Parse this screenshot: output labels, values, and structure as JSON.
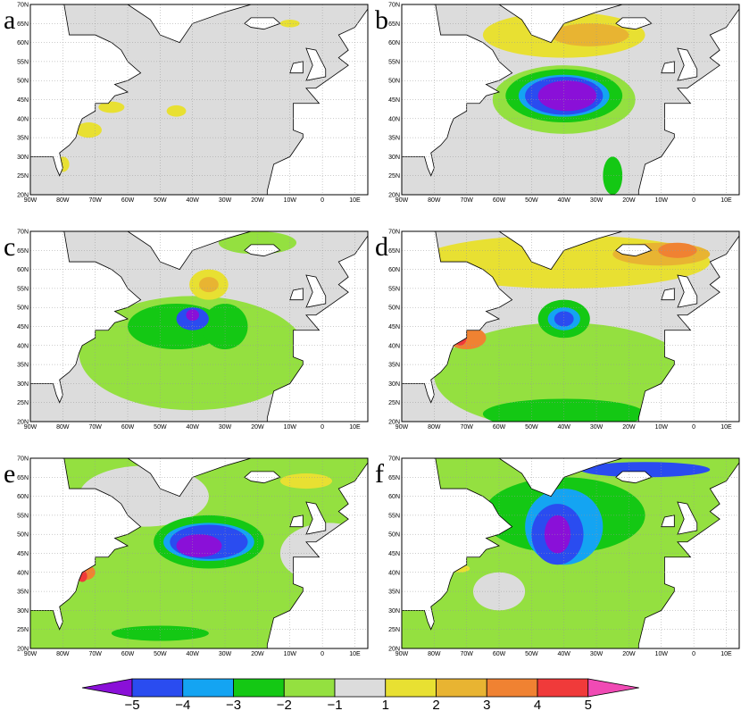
{
  "panels": [
    "a",
    "b",
    "c",
    "d",
    "e",
    "f"
  ],
  "x_ticks": [
    "90W",
    "80W",
    "70W",
    "60W",
    "50W",
    "40W",
    "30W",
    "20W",
    "10W",
    "0",
    "10E"
  ],
  "y_ticks": [
    "20N",
    "25N",
    "30N",
    "35N",
    "40N",
    "45N",
    "50N",
    "55N",
    "60N",
    "65N",
    "70N"
  ],
  "colorbar": {
    "labels": [
      "−5",
      "−4",
      "−3",
      "−2",
      "−1",
      "1",
      "2",
      "3",
      "4",
      "5"
    ],
    "colors": [
      "#8a10d8",
      "#2a4cf0",
      "#14a4f2",
      "#14c814",
      "#94e040",
      "#dcdcdc",
      "#e8e032",
      "#e8b432",
      "#f08232",
      "#f03a3a",
      "#f04ab4"
    ]
  }
}
